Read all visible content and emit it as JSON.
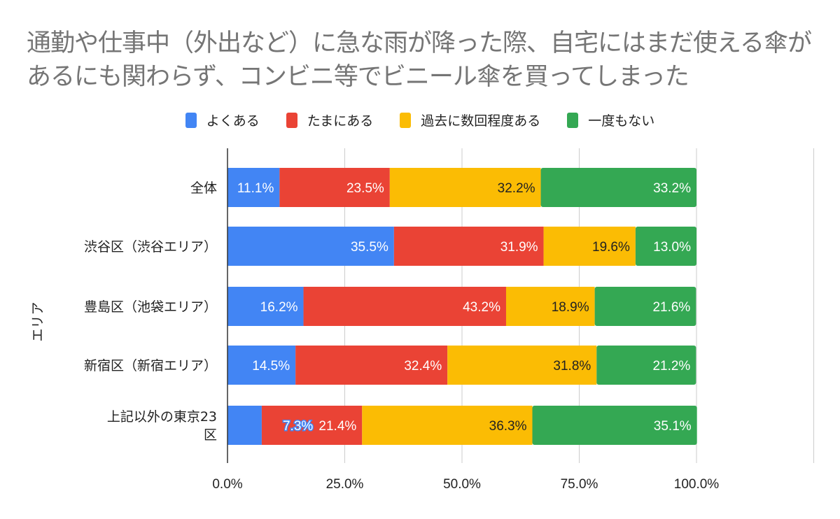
{
  "chart_data": {
    "type": "bar",
    "orientation": "horizontal",
    "stacked": true,
    "title": "通勤や仕事中（外出など）に急な雨が降った際、自宅にはまだ使える傘があるにも関わらず、コンビニ等でビニール傘を買ってしまった",
    "ylabel": "エリア",
    "xlabel": "",
    "categories": [
      "全体",
      "渋谷区（渋谷エリア）",
      "豊島区（池袋エリア）",
      "新宿区（新宿エリア）",
      "上記以外の東京23区"
    ],
    "series": [
      {
        "name": "よくある",
        "color": "#4285F4",
        "values": [
          11.1,
          35.5,
          16.2,
          14.5,
          7.3
        ]
      },
      {
        "name": "たまにある",
        "color": "#EA4335",
        "values": [
          23.5,
          31.9,
          43.2,
          32.4,
          21.4
        ]
      },
      {
        "name": "過去に数回程度ある",
        "color": "#FBBC04",
        "values": [
          32.2,
          19.6,
          18.9,
          31.8,
          36.3
        ]
      },
      {
        "name": "一度もない",
        "color": "#34A853",
        "values": [
          33.2,
          13.0,
          21.6,
          21.2,
          35.1
        ]
      }
    ],
    "xlim": [
      0,
      125
    ],
    "xticks": [
      "0.0%",
      "25.0%",
      "50.0%",
      "75.0%",
      "100.0%"
    ],
    "grid": true,
    "legend": "top"
  }
}
